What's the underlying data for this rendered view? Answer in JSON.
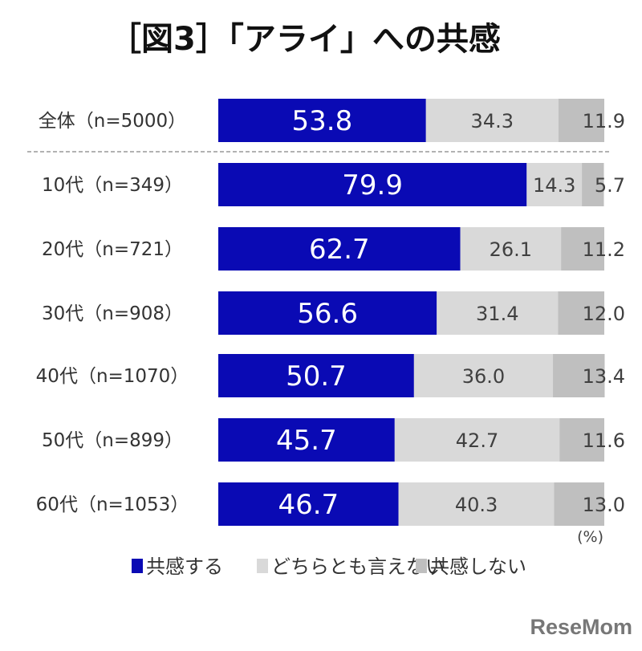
{
  "chart_data": {
    "type": "bar",
    "orientation": "horizontal",
    "stacked": true,
    "title": "［図3］「アライ」への共感",
    "categories": [
      "全体（n=5000）",
      "10代（n=349）",
      "20代（n=721）",
      "30代（n=908）",
      "40代（n=1070）",
      "50代（n=899）",
      "60代（n=1053）"
    ],
    "series": [
      {
        "name": "共感する",
        "color": "#0a0ab4",
        "values": [
          53.8,
          79.9,
          62.7,
          56.6,
          50.7,
          45.7,
          46.7
        ]
      },
      {
        "name": "どちらとも言えない",
        "color": "#d9d9d9",
        "values": [
          34.3,
          14.3,
          26.1,
          31.4,
          36.0,
          42.7,
          40.3
        ]
      },
      {
        "name": "共感しない",
        "color": "#bfbfbf",
        "values": [
          11.9,
          5.7,
          11.2,
          12.0,
          13.4,
          11.6,
          13.0
        ]
      }
    ],
    "value_labels": [
      [
        "53.8",
        "34.3",
        "11.9"
      ],
      [
        "79.9",
        "14.3",
        "5.7"
      ],
      [
        "62.7",
        "26.1",
        "11.2"
      ],
      [
        "56.6",
        "31.4",
        "12.0"
      ],
      [
        "50.7",
        "36.0",
        "13.4"
      ],
      [
        "45.7",
        "42.7",
        "11.6"
      ],
      [
        "46.7",
        "40.3",
        "13.0"
      ]
    ],
    "unit": "(%)",
    "xlim": [
      0,
      100
    ],
    "grid": false,
    "legend": "bottom",
    "separator_after_first_row": true
  },
  "watermark": "ReseMom"
}
